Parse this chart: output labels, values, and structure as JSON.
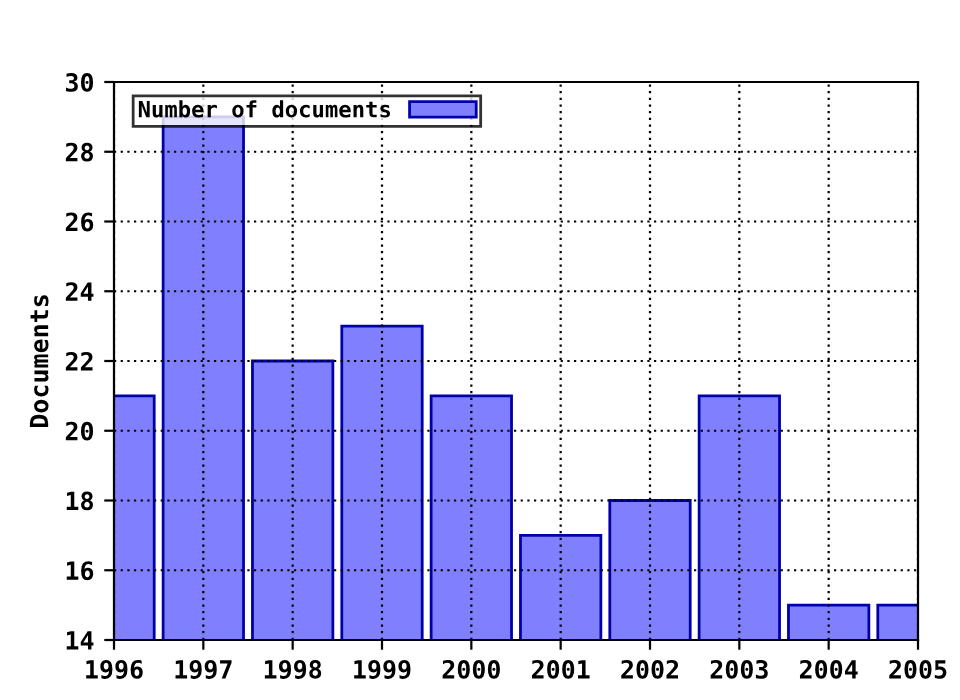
{
  "chart_data": {
    "type": "bar",
    "ylabel": "Documents",
    "x": [
      1996,
      1997,
      1998,
      1999,
      2000,
      2001,
      2002,
      2003,
      2004,
      2005
    ],
    "series": [
      {
        "name": "Number of documents",
        "color": "#8080ff",
        "values": [
          21,
          29,
          22,
          23,
          21,
          17,
          18,
          21,
          15,
          15
        ]
      }
    ],
    "xlim": [
      1996,
      2005
    ],
    "xticks": [
      1996,
      1997,
      1998,
      1999,
      2000,
      2001,
      2002,
      2003,
      2004,
      2005
    ],
    "ylim": [
      14,
      30
    ],
    "yticks": [
      14,
      16,
      18,
      20,
      22,
      24,
      26,
      28,
      30
    ],
    "grid": true,
    "legend": "top left"
  }
}
